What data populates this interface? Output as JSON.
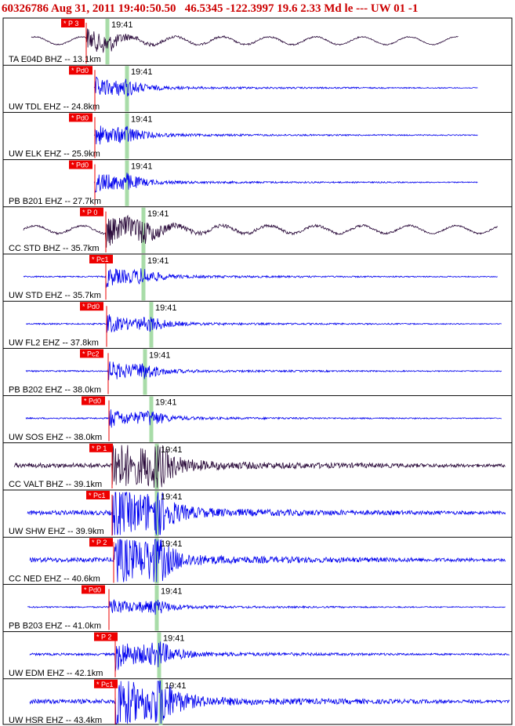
{
  "header": {
    "event_id": "60326786",
    "datetime": "Aug 31, 2011 19:40:50.50",
    "location_magnitude": "46.5345 -122.3997 19.6 2.33 Md le --- UW 01  -1"
  },
  "chart_data": {
    "type": "line",
    "title": "60326786 Aug 31, 2011 19:40:50.50   46.5345 -122.3997 19.6 2.33 Md le --- UW 01  -1",
    "time_label": "19:41",
    "colors": {
      "header": "#cc0000",
      "waveform_blue": "#0000ee",
      "waveform_dark": "#2a0a3a",
      "pick": "#ee0000",
      "s_marker": "#a8dca8",
      "frame": "#000000"
    },
    "traces": [
      {
        "label": "TA E04D BHZ -- 13.1km",
        "pick": "P 3",
        "color": "dark",
        "amplitude": "low"
      },
      {
        "label": "UW TDL EHZ -- 24.8km",
        "pick": "Pd0",
        "color": "blue",
        "amplitude": "low"
      },
      {
        "label": "UW ELK EHZ -- 25.9km",
        "pick": "Pd0",
        "color": "blue",
        "amplitude": "low"
      },
      {
        "label": "PB B201 EHZ -- 27.7km",
        "pick": "Pd0",
        "color": "blue",
        "amplitude": "low"
      },
      {
        "label": "CC STD BHZ -- 35.7km",
        "pick": "P 0",
        "color": "dark",
        "amplitude": "medium"
      },
      {
        "label": "UW STD EHZ -- 35.7km",
        "pick": "Pc1",
        "color": "blue",
        "amplitude": "low"
      },
      {
        "label": "UW FL2 EHZ -- 37.8km",
        "pick": "Pd0",
        "color": "blue",
        "amplitude": "low"
      },
      {
        "label": "PB B202 EHZ -- 38.0km",
        "pick": "Pc2",
        "color": "blue",
        "amplitude": "low"
      },
      {
        "label": "UW SOS EHZ -- 38.0km",
        "pick": "Pd0",
        "color": "blue",
        "amplitude": "low"
      },
      {
        "label": "CC VALT BHZ -- 39.1km",
        "pick": "P 1",
        "color": "dark",
        "amplitude": "high"
      },
      {
        "label": "UW SHW EHZ -- 39.9km",
        "pick": "Pc1",
        "color": "blue",
        "amplitude": "high"
      },
      {
        "label": "CC NED EHZ -- 40.6km",
        "pick": "P 2",
        "color": "blue",
        "amplitude": "high"
      },
      {
        "label": "PB B203 EHZ -- 41.0km",
        "pick": "Pd0",
        "color": "blue",
        "amplitude": "low"
      },
      {
        "label": "UW EDM EHZ -- 42.1km",
        "pick": "P 2",
        "color": "blue",
        "amplitude": "medium"
      },
      {
        "label": "UW HSR EHZ -- 43.4km",
        "pick": "Pc1",
        "color": "blue",
        "amplitude": "high"
      }
    ]
  }
}
